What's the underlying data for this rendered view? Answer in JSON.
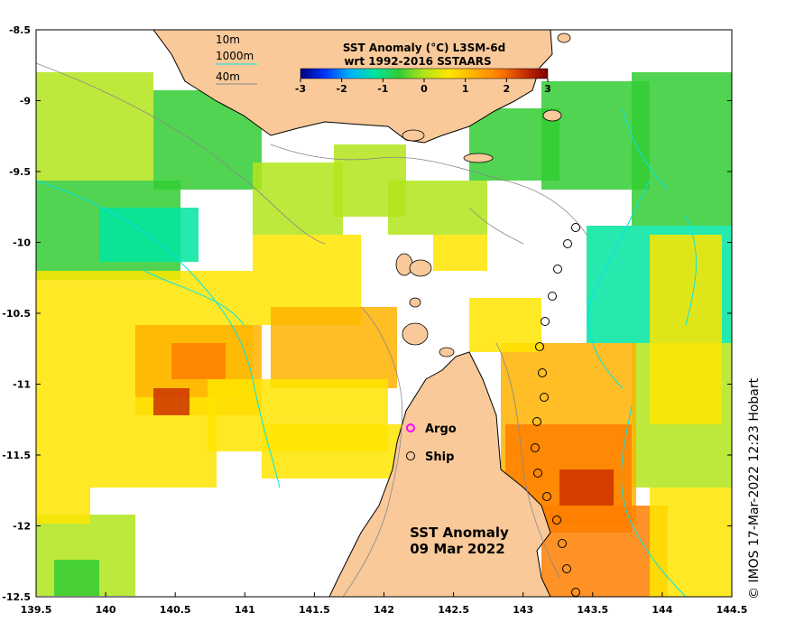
{
  "map": {
    "lon_range": [
      139.5,
      144.5
    ],
    "lat_range": [
      -12.5,
      -8.5
    ],
    "lon_ticks": [
      "139.5",
      "140",
      "140.5",
      "141",
      "141.5",
      "142",
      "142.5",
      "143",
      "143.5",
      "144",
      "144.5"
    ],
    "lat_ticks": [
      "-8.5",
      "-9",
      "-9.5",
      "-10",
      "-10.5",
      "-11",
      "-11.5",
      "-12",
      "-12.5"
    ],
    "land_color": "#f9c99a",
    "contour_color": "#00e5ee"
  },
  "colorbar": {
    "title_line1": "SST Anomaly (°C) L3SM-6d",
    "title_line2": "wrt 1992-2016 SSTAARS",
    "ticks": [
      "-3",
      "-2",
      "-1",
      "0",
      "1",
      "2",
      "3"
    ],
    "colors": [
      "#00007f",
      "#0033ff",
      "#00b2ff",
      "#00e5a0",
      "#33cc33",
      "#b2e51a",
      "#ffe500",
      "#ffb200",
      "#ff7f00",
      "#cc3300",
      "#7f0000"
    ]
  },
  "depth_legend": {
    "items": [
      "10m",
      "1000m",
      "40m"
    ]
  },
  "markers_legend": {
    "argo": "Argo",
    "ship": "Ship"
  },
  "map_title": {
    "line1": "SST Anomaly",
    "line2": "09 Mar 2022"
  },
  "credit": "© IMOS 17-Mar-2022 12:23 Hobart"
}
